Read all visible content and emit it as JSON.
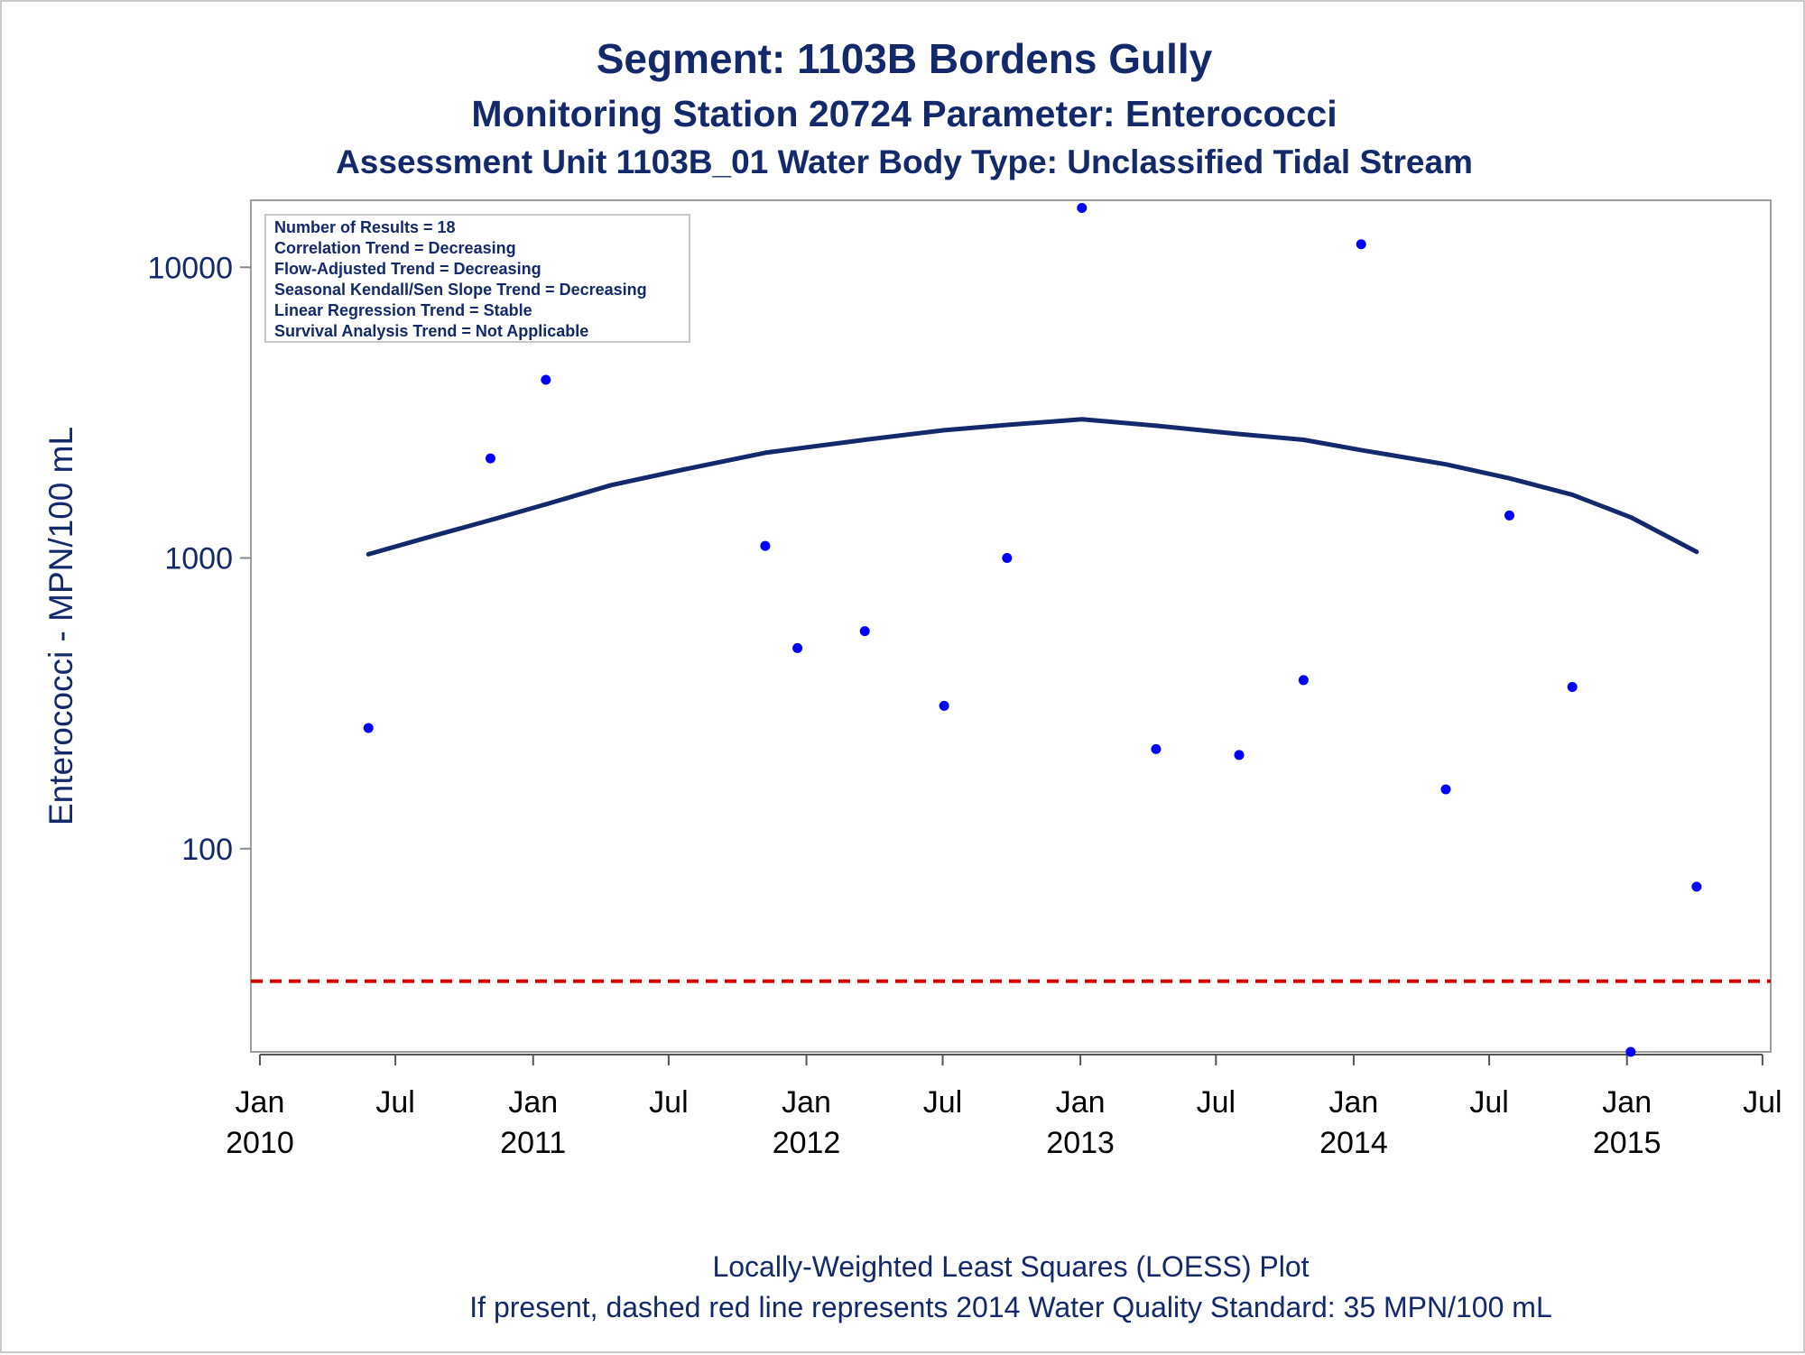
{
  "titles": {
    "line1": "Segment: 1103B  Bordens Gully",
    "line2": "Monitoring Station 20724 Parameter: Enterococci",
    "line3": "Assessment Unit 1103B_01   Water Body Type: Unclassified Tidal Stream"
  },
  "stats_box": [
    "Number of Results = 18",
    "Correlation Trend = Decreasing",
    "Flow-Adjusted Trend = Decreasing",
    "Seasonal Kendall/Sen Slope Trend = Decreasing",
    "Linear Regression Trend = Stable",
    "Survival Analysis Trend = Not Applicable"
  ],
  "footnotes": {
    "line1": "Locally-Weighted Least Squares (LOESS) Plot",
    "line2": "If present, dashed red line represents 2014 Water Quality Standard: 35 MPN/100 mL"
  },
  "chart_data": {
    "type": "scatter",
    "ylabel": "Enterococci - MPN/100 mL",
    "xlabel": "",
    "yscale": "log",
    "ylim": [
      20,
      17000
    ],
    "xlim": [
      "2009-12-20",
      "2015-07-12"
    ],
    "y_ticks": [
      100,
      1000,
      10000
    ],
    "y_tick_labels": [
      "100",
      "1000",
      "10000"
    ],
    "x_ticks": [
      "2010-01-01",
      "2010-07-01",
      "2011-01-01",
      "2011-07-01",
      "2012-01-01",
      "2012-07-01",
      "2013-01-01",
      "2013-07-01",
      "2014-01-01",
      "2014-07-01",
      "2015-01-01",
      "2015-07-01"
    ],
    "x_tick_labels": [
      [
        "Jan",
        "2010"
      ],
      [
        "Jul",
        ""
      ],
      [
        "Jan",
        "2011"
      ],
      [
        "Jul",
        ""
      ],
      [
        "Jan",
        "2012"
      ],
      [
        "Jul",
        ""
      ],
      [
        "Jan",
        "2013"
      ],
      [
        "Jul",
        ""
      ],
      [
        "Jan",
        "2014"
      ],
      [
        "Jul",
        ""
      ],
      [
        "Jan",
        "2015"
      ],
      [
        "Jul",
        ""
      ]
    ],
    "series": [
      {
        "type": "scatter",
        "color": "#0000ff",
        "points": [
          {
            "x": "2010-05-26",
            "y": 260
          },
          {
            "x": "2010-11-05",
            "y": 2200
          },
          {
            "x": "2011-01-18",
            "y": 4100
          },
          {
            "x": "2011-11-07",
            "y": 1100
          },
          {
            "x": "2011-12-20",
            "y": 490
          },
          {
            "x": "2012-03-19",
            "y": 560
          },
          {
            "x": "2012-07-03",
            "y": 310
          },
          {
            "x": "2012-09-25",
            "y": 1000
          },
          {
            "x": "2013-01-03",
            "y": 16000
          },
          {
            "x": "2013-04-12",
            "y": 220
          },
          {
            "x": "2013-08-01",
            "y": 210
          },
          {
            "x": "2013-10-26",
            "y": 380
          },
          {
            "x": "2014-01-11",
            "y": 12000
          },
          {
            "x": "2014-05-04",
            "y": 160
          },
          {
            "x": "2014-07-28",
            "y": 1400
          },
          {
            "x": "2014-10-20",
            "y": 360
          },
          {
            "x": "2015-01-06",
            "y": 20
          },
          {
            "x": "2015-04-04",
            "y": 74
          }
        ]
      },
      {
        "type": "line",
        "color": "#13296b",
        "points": [
          {
            "x": "2010-05-26",
            "y": 1030
          },
          {
            "x": "2010-08-15",
            "y": 1180
          },
          {
            "x": "2010-11-05",
            "y": 1350
          },
          {
            "x": "2011-01-18",
            "y": 1530
          },
          {
            "x": "2011-04-15",
            "y": 1780
          },
          {
            "x": "2011-07-15",
            "y": 2000
          },
          {
            "x": "2011-11-07",
            "y": 2300
          },
          {
            "x": "2012-03-19",
            "y": 2550
          },
          {
            "x": "2012-07-03",
            "y": 2750
          },
          {
            "x": "2012-09-25",
            "y": 2870
          },
          {
            "x": "2013-01-03",
            "y": 3000
          },
          {
            "x": "2013-04-12",
            "y": 2850
          },
          {
            "x": "2013-08-01",
            "y": 2670
          },
          {
            "x": "2013-10-26",
            "y": 2550
          },
          {
            "x": "2014-01-11",
            "y": 2350
          },
          {
            "x": "2014-05-04",
            "y": 2100
          },
          {
            "x": "2014-07-28",
            "y": 1880
          },
          {
            "x": "2014-10-20",
            "y": 1650
          },
          {
            "x": "2015-01-06",
            "y": 1380
          },
          {
            "x": "2015-04-04",
            "y": 1050
          }
        ]
      },
      {
        "type": "reference_line",
        "color": "#d40000",
        "dashed": true,
        "y": 35
      }
    ]
  }
}
